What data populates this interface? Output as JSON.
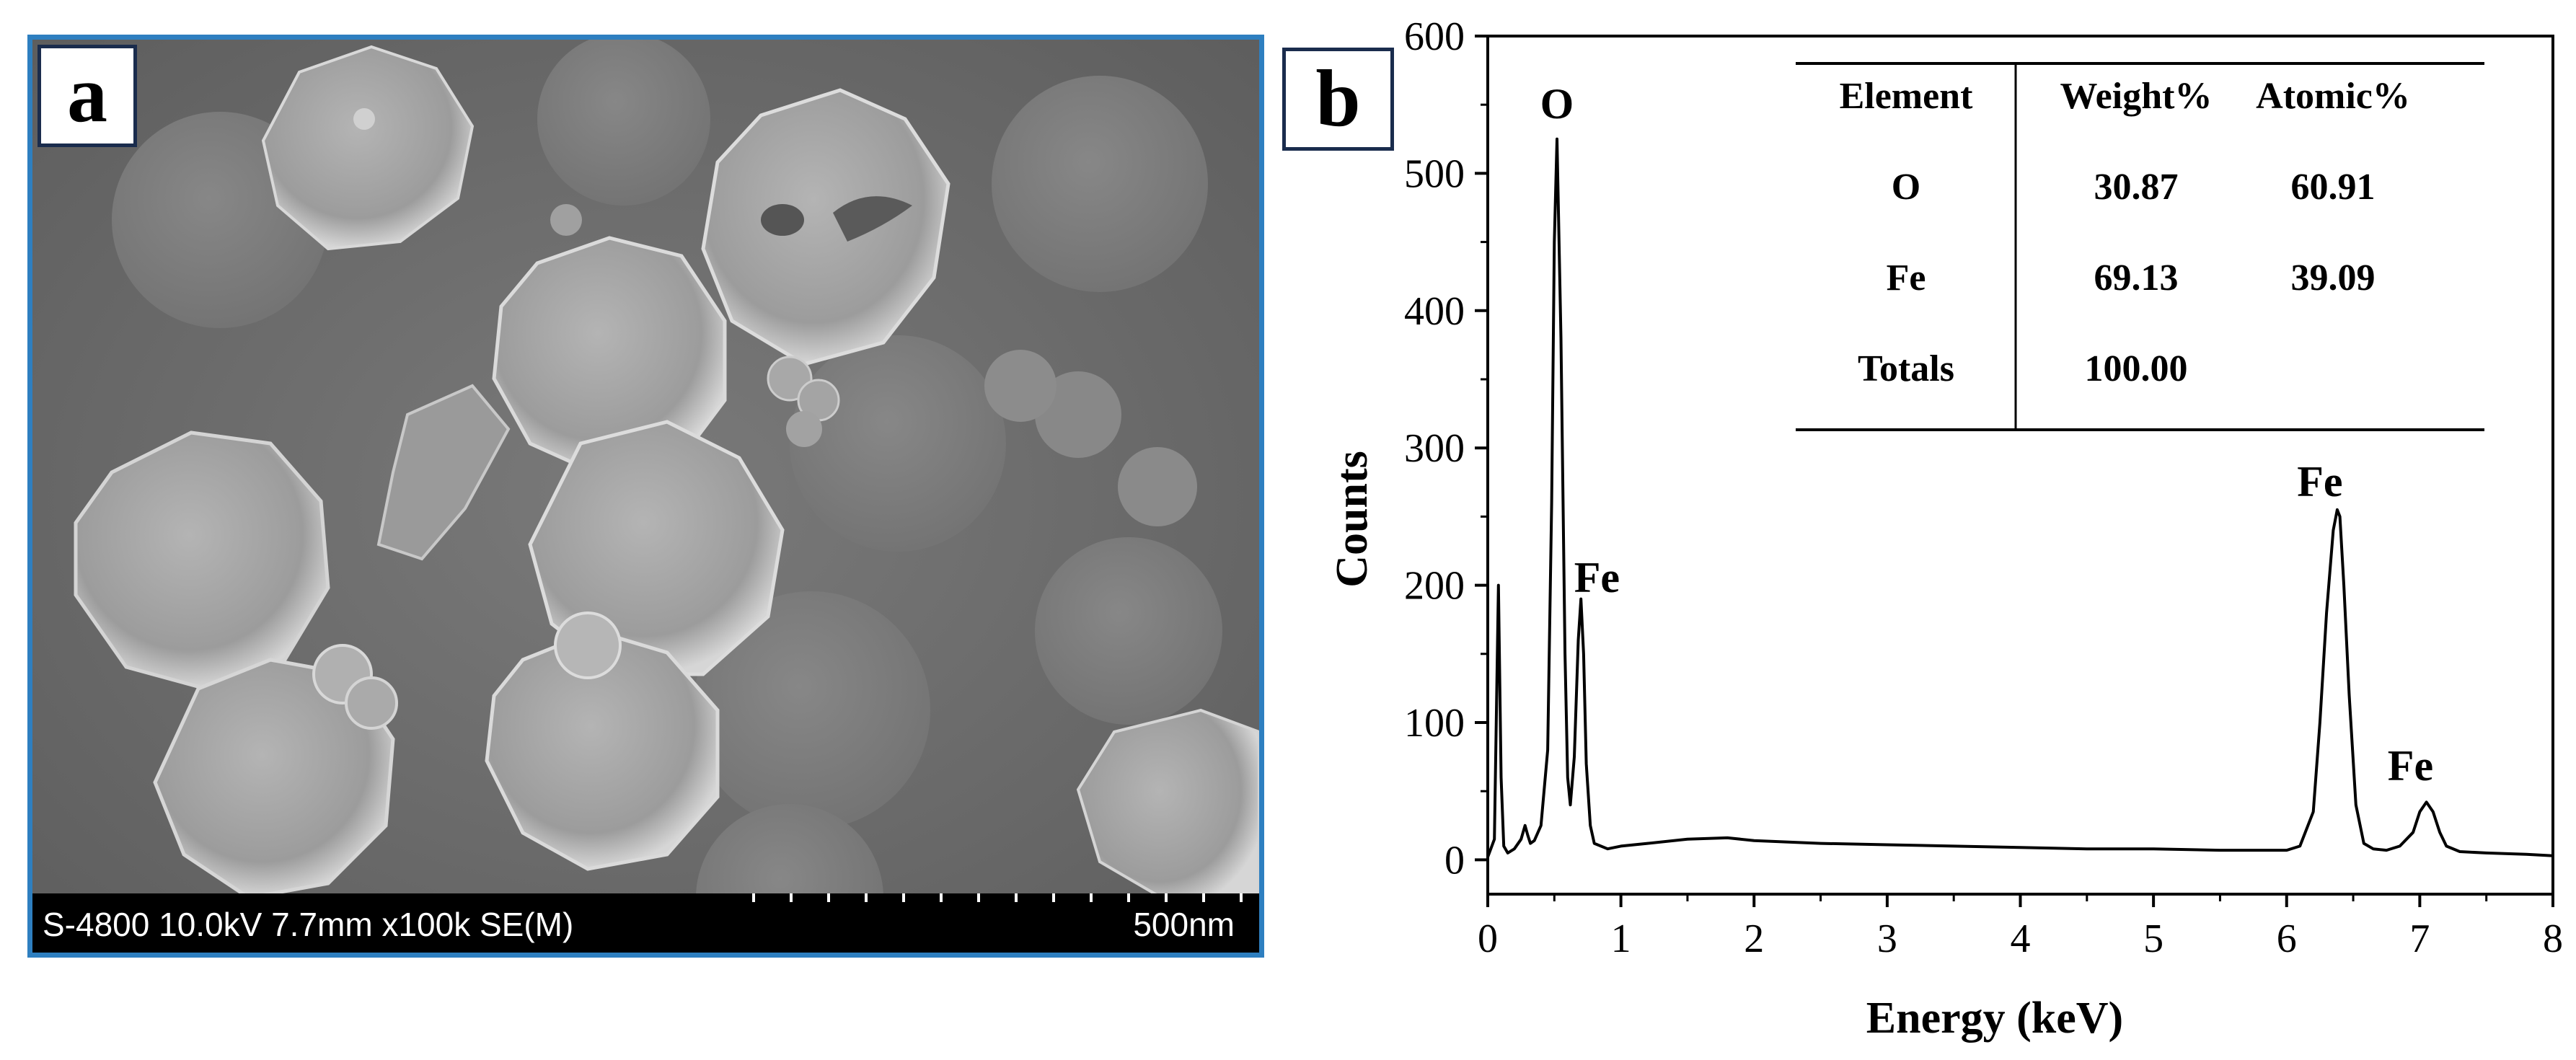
{
  "panel_a": {
    "label": "a",
    "info_text": "S-4800 10.0kV 7.7mm x100k SE(M)",
    "scale_text": "500nm"
  },
  "panel_b": {
    "label": "b"
  },
  "chart_data": {
    "type": "line",
    "xlabel": "Energy (keV)",
    "ylabel": "Counts",
    "xlim": [
      0,
      8
    ],
    "ylim": [
      -25,
      600
    ],
    "xticks": [
      0,
      1,
      2,
      3,
      4,
      5,
      6,
      7,
      8
    ],
    "yticks": [
      0,
      100,
      200,
      300,
      400,
      500,
      600
    ],
    "grid": false,
    "series": [
      {
        "x": [
          0.0,
          0.05,
          0.08,
          0.1,
          0.12,
          0.15,
          0.2,
          0.25,
          0.28,
          0.3,
          0.32,
          0.35,
          0.4,
          0.45,
          0.48,
          0.5,
          0.52,
          0.55,
          0.58,
          0.6,
          0.62,
          0.65,
          0.68,
          0.7,
          0.72,
          0.74,
          0.77,
          0.8,
          0.9,
          1.0,
          1.2,
          1.5,
          1.8,
          2.0,
          2.5,
          3.0,
          3.5,
          4.0,
          4.5,
          5.0,
          5.5,
          6.0,
          6.1,
          6.2,
          6.25,
          6.3,
          6.35,
          6.38,
          6.4,
          6.43,
          6.47,
          6.52,
          6.58,
          6.65,
          6.75,
          6.85,
          6.95,
          7.0,
          7.05,
          7.1,
          7.15,
          7.2,
          7.3,
          7.5,
          7.8,
          8.0
        ],
        "y": [
          2,
          15,
          200,
          60,
          10,
          5,
          8,
          15,
          25,
          18,
          12,
          14,
          25,
          80,
          260,
          450,
          525,
          380,
          150,
          60,
          40,
          75,
          160,
          190,
          150,
          70,
          25,
          12,
          8,
          10,
          12,
          15,
          16,
          14,
          12,
          11,
          10,
          9,
          8,
          8,
          7,
          7,
          10,
          35,
          100,
          180,
          240,
          255,
          250,
          200,
          120,
          40,
          12,
          8,
          7,
          10,
          20,
          35,
          42,
          35,
          20,
          10,
          6,
          5,
          4,
          3
        ]
      }
    ],
    "peak_labels": [
      {
        "text": "O",
        "x": 0.52,
        "y": 540
      },
      {
        "text": "Fe",
        "x": 0.82,
        "y": 195
      },
      {
        "text": "Fe",
        "x": 6.25,
        "y": 265
      },
      {
        "text": "Fe",
        "x": 6.93,
        "y": 58
      }
    ],
    "inset_table": {
      "headers": [
        "Element",
        "Weight%",
        "Atomic%"
      ],
      "rows": [
        [
          "O",
          "30.87",
          "60.91"
        ],
        [
          "Fe",
          "69.13",
          "39.09"
        ],
        [
          "Totals",
          "100.00",
          ""
        ]
      ]
    }
  }
}
